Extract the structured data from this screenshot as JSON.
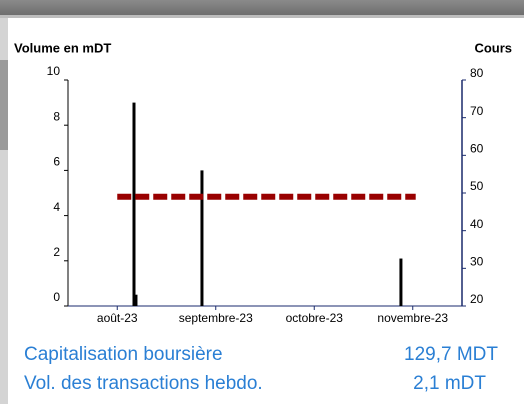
{
  "chart_data": {
    "type": "bar-line",
    "y_label": "Volume en mDT",
    "y2_label": "Cours",
    "xlim": [
      7.5,
      11.5
    ],
    "xticks": [
      {
        "value": 8,
        "label": "août-23"
      },
      {
        "value": 9,
        "label": "septembre-23"
      },
      {
        "value": 10,
        "label": "octobre-23"
      },
      {
        "value": 11,
        "label": "novembre-23"
      }
    ],
    "ylim": [
      0,
      10
    ],
    "yticks": [
      0,
      2,
      4,
      6,
      8,
      10
    ],
    "y2lim": [
      20,
      80
    ],
    "y2ticks": [
      20,
      30,
      40,
      50,
      60,
      70,
      80
    ],
    "series": [
      {
        "name": "Volume",
        "type": "bar",
        "color": "#000000",
        "x": [
          8.17,
          8.19,
          8.86,
          10.88
        ],
        "values": [
          9,
          0.5,
          6,
          2.1
        ]
      },
      {
        "name": "Cours",
        "type": "line",
        "axis": "y2",
        "color": "#990000",
        "x": [
          8,
          11.03
        ],
        "values": [
          49,
          49
        ]
      }
    ]
  },
  "info": [
    {
      "label": "Capitalisation boursière",
      "value": "129,7 MDT"
    },
    {
      "label": "Vol. des transactions hebdo.",
      "value": "2,1 mDT"
    }
  ]
}
